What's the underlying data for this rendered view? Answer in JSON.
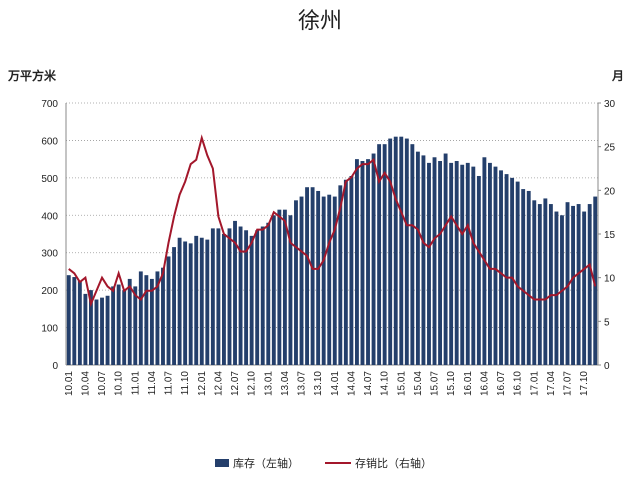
{
  "chart_data": {
    "type": "bar_line",
    "title": "徐州",
    "y_label": "万平方米",
    "y2_label": "月",
    "categories": [
      "10.01",
      null,
      null,
      "10.04",
      null,
      null,
      "10.07",
      null,
      null,
      "10.10",
      null,
      null,
      "11.01",
      null,
      null,
      "11.04",
      null,
      null,
      "11.07",
      null,
      null,
      "11.10",
      null,
      null,
      "12.01",
      null,
      null,
      "12.04",
      null,
      null,
      "12.07",
      null,
      null,
      "12.10",
      null,
      null,
      "13.01",
      null,
      null,
      "13.04",
      null,
      null,
      "13.07",
      null,
      null,
      "13.10",
      null,
      null,
      "14.01",
      null,
      null,
      "14.04",
      null,
      null,
      "14.07",
      null,
      null,
      "14.10",
      null,
      null,
      "15.01",
      null,
      null,
      "15.04",
      null,
      null,
      "15.07",
      null,
      null,
      "15.10",
      null,
      null,
      "16.01",
      null,
      null,
      "16.04",
      null,
      null,
      "16.07",
      null,
      null,
      "16.10",
      null,
      null,
      "17.01",
      null,
      null,
      "17.04",
      null,
      null,
      "17.07",
      null,
      null,
      "17.10",
      null,
      null
    ],
    "series": [
      {
        "name": "库存（左轴）",
        "color": "#243f6b",
        "kind": "bar",
        "values": [
          240,
          235,
          225,
          190,
          200,
          175,
          180,
          185,
          210,
          215,
          200,
          230,
          210,
          250,
          240,
          230,
          250,
          260,
          290,
          315,
          340,
          330,
          325,
          345,
          340,
          335,
          365,
          365,
          350,
          365,
          385,
          370,
          360,
          345,
          360,
          370,
          380,
          400,
          415,
          415,
          400,
          440,
          450,
          475,
          475,
          465,
          450,
          455,
          450,
          480,
          495,
          505,
          550,
          545,
          550,
          565,
          590,
          590,
          605,
          610,
          610,
          605,
          590,
          570,
          560,
          540,
          555,
          545,
          565,
          540,
          545,
          535,
          540,
          530,
          505,
          555,
          540,
          530,
          520,
          510,
          500,
          490,
          470,
          465,
          440,
          430,
          445,
          430,
          410,
          400,
          435,
          425,
          430,
          410,
          430,
          450
        ]
      },
      {
        "name": "存销比（右轴）",
        "color": "#a3172b",
        "kind": "line",
        "axis": "y2",
        "values": [
          11,
          10.5,
          9.5,
          10,
          7,
          8.5,
          10,
          9,
          8.5,
          10.5,
          8.5,
          9,
          8,
          7.5,
          8.5,
          8.5,
          9,
          10.5,
          14,
          17,
          19.5,
          21,
          23,
          23.5,
          26,
          24,
          22.5,
          17,
          15,
          14.5,
          14,
          13,
          13,
          14,
          15.5,
          15.5,
          16,
          17.5,
          17,
          16.5,
          14,
          13.5,
          13,
          12.5,
          11,
          11,
          12,
          14,
          15.5,
          18,
          21,
          21.5,
          22.5,
          23,
          23,
          23.5,
          21,
          22,
          21,
          19,
          17.5,
          16,
          16,
          15.5,
          14,
          13.5,
          14.5,
          15,
          16,
          17,
          16,
          15,
          16,
          14,
          13,
          12,
          11,
          11,
          10.5,
          10,
          10,
          9,
          8.5,
          8,
          7.5,
          7.5,
          7.5,
          8,
          8,
          8.5,
          9,
          10,
          10.5,
          11,
          11.5,
          9
        ]
      }
    ],
    "ylim": [
      0,
      700
    ],
    "yticks": [
      0,
      100,
      200,
      300,
      400,
      500,
      600,
      700
    ],
    "y2lim": [
      0,
      30
    ],
    "y2ticks": [
      0,
      5,
      10,
      15,
      20,
      25,
      30
    ],
    "grid": true
  }
}
